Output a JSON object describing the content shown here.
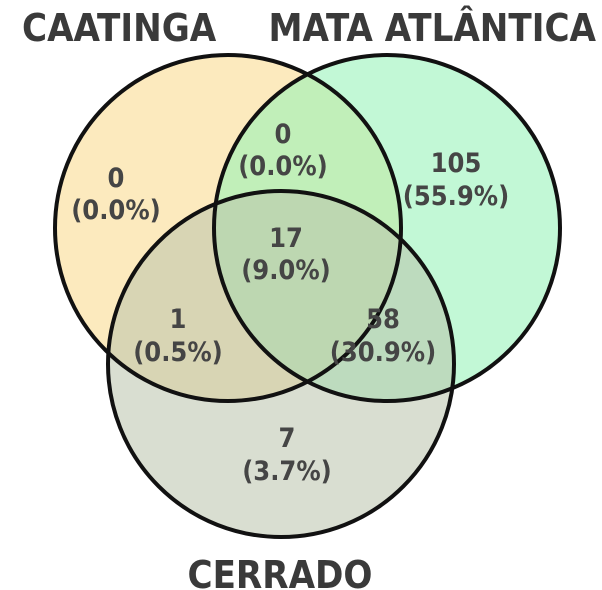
{
  "sets": [
    {
      "key": "caatinga",
      "name": "CAATINGA",
      "color": "#fbe1a3"
    },
    {
      "key": "mata",
      "name": "MATA ATLÂNTICA",
      "color": "#8ff2b5"
    },
    {
      "key": "cerrado",
      "name": "CERRADO",
      "color": "#b9c3ac"
    }
  ],
  "regions": {
    "caatinga_only": {
      "count": "0",
      "pct": "(0.0%)"
    },
    "caatinga_mata": {
      "count": "0",
      "pct": "(0.0%)"
    },
    "mata_only": {
      "count": "105",
      "pct": "(55.9%)"
    },
    "all_three": {
      "count": "17",
      "pct": "(9.0%)"
    },
    "caatinga_cerrado": {
      "count": "1",
      "pct": "(0.5%)"
    },
    "mata_cerrado": {
      "count": "58",
      "pct": "(30.9%)"
    },
    "cerrado_only": {
      "count": "7",
      "pct": "(3.7%)"
    }
  }
}
